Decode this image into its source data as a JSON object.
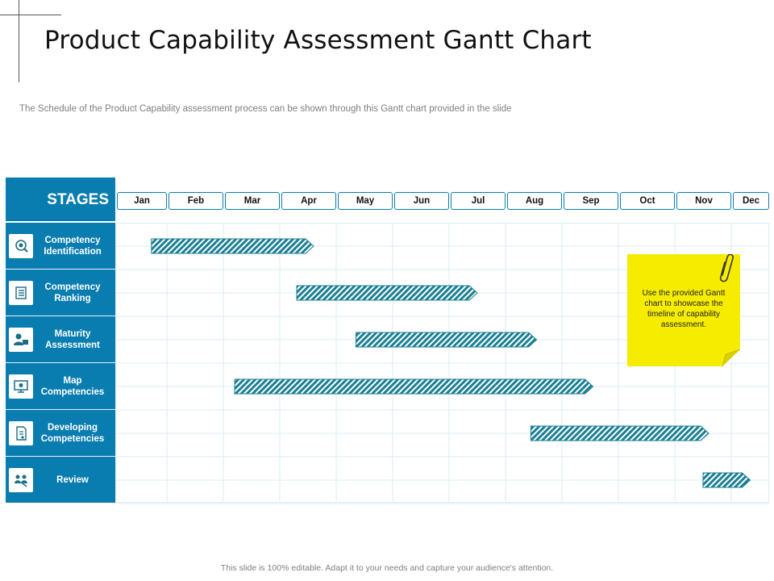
{
  "title": "Product Capability Assessment Gantt Chart",
  "subtitle": "The Schedule of the Product Capability assessment process can be shown through this Gantt chart provided in the slide",
  "footer": "This slide is 100% editable.  Adapt it to your needs and capture your audience's attention.",
  "note": {
    "text": "Use the provided Gantt chart to showcase the timeline  of capability assessment.",
    "color": "#f6ec00",
    "icon": "paperclip-icon"
  },
  "colors": {
    "accent": "#0a7db0",
    "bar": "#1b7f93",
    "grid": "#d8eef6"
  },
  "chart_data": {
    "type": "gantt",
    "stages_label": "STAGES",
    "months": [
      "Jan",
      "Feb",
      "Mar",
      "Apr",
      "May",
      "Jun",
      "Jul",
      "Aug",
      "Sep",
      "Oct",
      "Nov",
      "Dec"
    ],
    "tasks": [
      {
        "label": "Competency Identification",
        "icon": "target-icon",
        "start": 0.7,
        "end": 3.6
      },
      {
        "label": "Competency Ranking",
        "icon": "list-icon",
        "start": 3.3,
        "end": 6.5
      },
      {
        "label": "Maturity Assessment",
        "icon": "user-card-icon",
        "start": 4.35,
        "end": 7.55
      },
      {
        "label": "Map Competencies",
        "icon": "monitor-icon",
        "start": 2.2,
        "end": 8.55
      },
      {
        "label": "Developing Competencies",
        "icon": "document-icon",
        "start": 7.45,
        "end": 10.6
      },
      {
        "label": "Review",
        "icon": "team-icon",
        "start": 10.5,
        "end": 11.5
      }
    ]
  }
}
